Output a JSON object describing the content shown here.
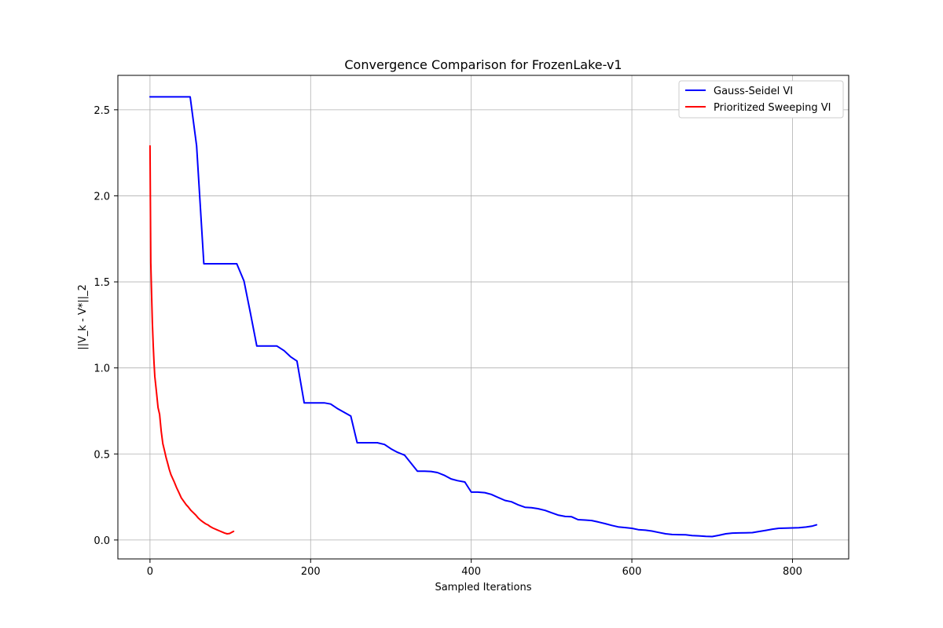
{
  "chart_data": {
    "type": "line",
    "title": "Convergence Comparison for FrozenLake-v1",
    "xlabel": "Sampled Iterations",
    "ylabel": "||V_k - V*||_2",
    "xlim": [
      -40,
      870
    ],
    "ylim": [
      -0.11,
      2.7
    ],
    "xticks": [
      0,
      200,
      400,
      600,
      800
    ],
    "yticks": [
      0.0,
      0.5,
      1.0,
      1.5,
      2.0,
      2.5
    ],
    "xtick_labels": [
      "0",
      "200",
      "400",
      "600",
      "800"
    ],
    "ytick_labels": [
      "0.0",
      "0.5",
      "1.0",
      "1.5",
      "2.0",
      "2.5"
    ],
    "grid": true,
    "legend_position": "top-right",
    "series": [
      {
        "name": "Gauss-Seidel VI",
        "color": "#0000ff",
        "x": [
          0,
          50,
          58,
          67,
          108,
          117,
          125,
          133,
          158,
          167,
          175,
          183,
          192,
          217,
          225,
          233,
          250,
          258,
          283,
          292,
          300,
          308,
          317,
          333,
          342,
          350,
          358,
          367,
          375,
          383,
          392,
          400,
          408,
          417,
          425,
          433,
          442,
          450,
          458,
          467,
          475,
          483,
          492,
          500,
          508,
          517,
          525,
          533,
          542,
          550,
          558,
          567,
          575,
          583,
          592,
          600,
          608,
          617,
          625,
          633,
          642,
          650,
          658,
          667,
          675,
          683,
          692,
          700,
          708,
          717,
          725,
          733,
          742,
          750,
          758,
          767,
          775,
          783,
          792,
          800,
          808,
          817,
          825,
          830
        ],
        "values": [
          2.575,
          2.575,
          2.29,
          1.605,
          1.605,
          1.505,
          1.32,
          1.127,
          1.127,
          1.1,
          1.065,
          1.04,
          0.797,
          0.797,
          0.79,
          0.765,
          0.72,
          0.565,
          0.565,
          0.555,
          0.53,
          0.51,
          0.493,
          0.4,
          0.4,
          0.398,
          0.392,
          0.375,
          0.355,
          0.345,
          0.337,
          0.278,
          0.278,
          0.275,
          0.265,
          0.248,
          0.23,
          0.222,
          0.205,
          0.19,
          0.188,
          0.182,
          0.172,
          0.158,
          0.145,
          0.137,
          0.135,
          0.118,
          0.116,
          0.113,
          0.105,
          0.095,
          0.085,
          0.076,
          0.072,
          0.068,
          0.06,
          0.057,
          0.052,
          0.044,
          0.036,
          0.032,
          0.031,
          0.03,
          0.026,
          0.024,
          0.021,
          0.02,
          0.027,
          0.036,
          0.04,
          0.041,
          0.042,
          0.043,
          0.049,
          0.056,
          0.063,
          0.068,
          0.069,
          0.07,
          0.071,
          0.075,
          0.081,
          0.088
        ]
      },
      {
        "name": "Prioritized Sweeping VI",
        "color": "#ff0000",
        "x": [
          0,
          1,
          2,
          3,
          4,
          5,
          6,
          8,
          10,
          12,
          14,
          16,
          18,
          20,
          22,
          24,
          26,
          28,
          30,
          33,
          36,
          39,
          42,
          45,
          48,
          51,
          54,
          57,
          60,
          63,
          66,
          69,
          72,
          75,
          78,
          81,
          84,
          87,
          90,
          93,
          96,
          99,
          102,
          104
        ],
        "values": [
          2.29,
          1.61,
          1.43,
          1.26,
          1.13,
          1.03,
          0.95,
          0.86,
          0.77,
          0.73,
          0.63,
          0.56,
          0.52,
          0.48,
          0.445,
          0.41,
          0.38,
          0.36,
          0.34,
          0.305,
          0.275,
          0.245,
          0.225,
          0.205,
          0.19,
          0.172,
          0.158,
          0.145,
          0.128,
          0.115,
          0.105,
          0.095,
          0.088,
          0.078,
          0.07,
          0.064,
          0.058,
          0.052,
          0.046,
          0.04,
          0.036,
          0.038,
          0.045,
          0.05
        ]
      }
    ]
  }
}
